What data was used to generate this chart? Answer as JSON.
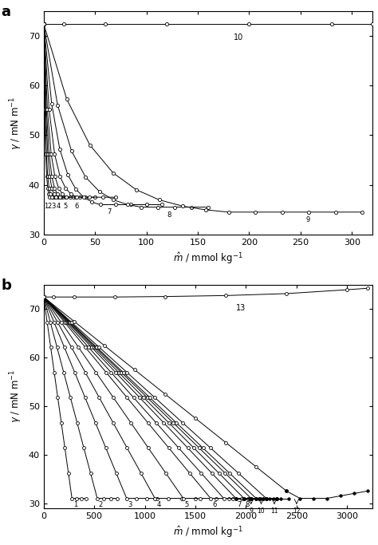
{
  "panel_a": {
    "label": "a",
    "xlabel": "$\\hat{m}$ / mmol kg$^{-1}$",
    "ylabel": "$\\gamma$ / mN m$^{-1}$",
    "xlim": [
      0,
      320
    ],
    "ylim": [
      30,
      75
    ],
    "xticks": [
      0,
      50,
      100,
      150,
      200,
      250,
      300
    ],
    "yticks": [
      30,
      40,
      50,
      60,
      70
    ],
    "curves_a": [
      {
        "label": "1",
        "xend": 14,
        "cmc_y": 37.5,
        "x_label": 0.5,
        "y_label": 37.0
      },
      {
        "label": "2",
        "xend": 18,
        "cmc_y": 37.5,
        "x_label": 3.5,
        "y_label": 37.0
      },
      {
        "label": "3",
        "xend": 26,
        "cmc_y": 37.5,
        "x_label": 7.5,
        "y_label": 37.0
      },
      {
        "label": "4",
        "xend": 35,
        "cmc_y": 37.5,
        "x_label": 12,
        "y_label": 37.0
      },
      {
        "label": "5",
        "xend": 50,
        "cmc_y": 37.5,
        "x_label": 19,
        "y_label": 37.0
      },
      {
        "label": "6",
        "xend": 70,
        "cmc_y": 37.5,
        "x_label": 28,
        "y_label": 37.0
      },
      {
        "label": "7",
        "xend": 115,
        "cmc_y": 36.0,
        "x_label": 55,
        "y_label": 36.0
      },
      {
        "label": "8",
        "xend": 160,
        "cmc_y": 35.5,
        "x_label": 110,
        "y_label": 35.5
      },
      {
        "label": "9",
        "xend": 310,
        "cmc_y": 34.5,
        "x_label": 250,
        "y_label": 34.5
      },
      {
        "label": "10",
        "xend": 310,
        "cmc_y": 72.5,
        "x_label": 185,
        "y_label": 71.0
      }
    ]
  },
  "panel_b": {
    "label": "b",
    "xlabel": "$\\hat{m}$ / mmol kg$^{-1}$",
    "ylabel": "$\\gamma$ / mN m$^{-1}$",
    "xlim": [
      0,
      3250
    ],
    "ylim": [
      29,
      75
    ],
    "xticks": [
      0,
      500,
      1000,
      1500,
      2000,
      2500,
      3000
    ],
    "yticks": [
      30,
      40,
      50,
      60,
      70
    ]
  }
}
